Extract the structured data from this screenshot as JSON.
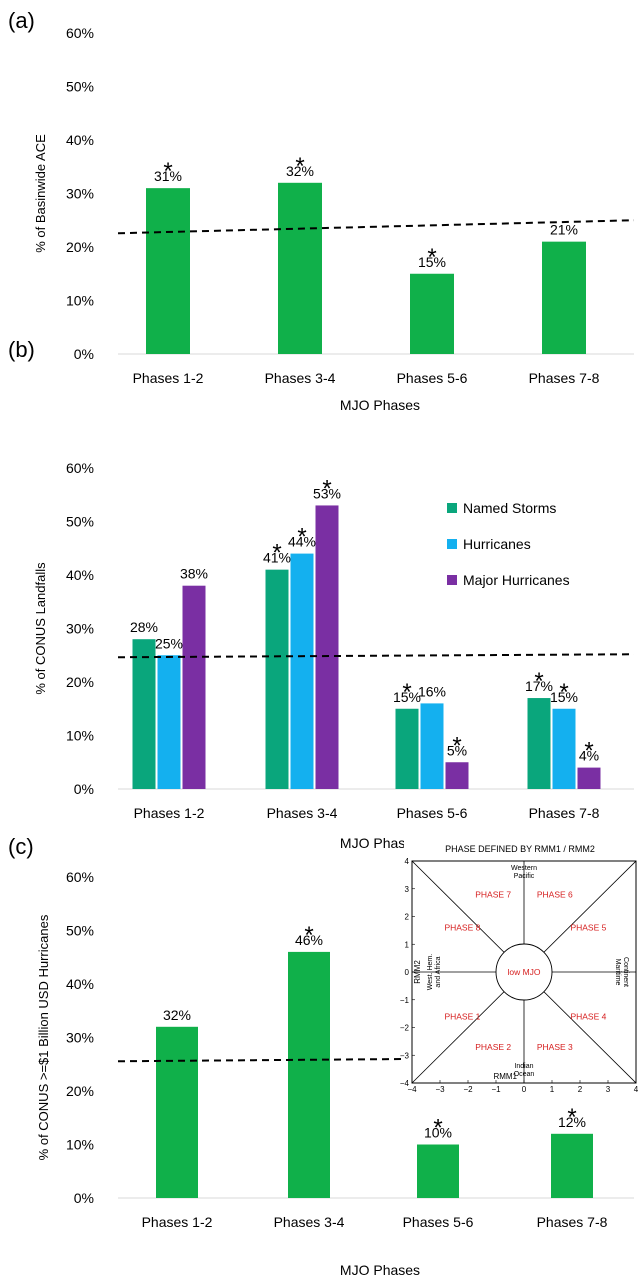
{
  "chart_data": [
    {
      "panel": "(a)",
      "type": "bar",
      "categories": [
        "Phases 1-2",
        "Phases 3-4",
        "Phases 5-6",
        "Phases 7-8"
      ],
      "series": [
        {
          "values": [
            31,
            32,
            15,
            21
          ],
          "labels": [
            "31%",
            "32%",
            "15%",
            "21%"
          ],
          "significant": [
            true,
            true,
            true,
            false
          ],
          "color": "#10b04a"
        }
      ],
      "xlabel": "MJO Phases",
      "ylabel": "% of Basinwide ACE",
      "ylim": [
        0,
        60
      ],
      "yticks": [
        0,
        10,
        20,
        30,
        40,
        50,
        60
      ],
      "yticklabels": [
        "0%",
        "10%",
        "20%",
        "30%",
        "40%",
        "50%",
        "60%"
      ],
      "reference_line": 25,
      "grid": false
    },
    {
      "panel": "(b)",
      "type": "bar",
      "categories": [
        "Phases 1-2",
        "Phases 3-4",
        "Phases 5-6",
        "Phases 7-8"
      ],
      "series": [
        {
          "name": "Named Storms",
          "values": [
            28,
            41,
            15,
            17
          ],
          "labels": [
            "28%",
            "41%",
            "15%",
            "17%"
          ],
          "significant": [
            false,
            true,
            true,
            true
          ],
          "color": "#0aa67c"
        },
        {
          "name": "Hurricanes",
          "values": [
            25,
            44,
            16,
            15
          ],
          "labels": [
            "25%",
            "44%",
            "16%",
            "15%"
          ],
          "significant": [
            false,
            true,
            false,
            true
          ],
          "color": "#14b0ef"
        },
        {
          "name": "Major Hurricanes",
          "values": [
            38,
            53,
            5,
            4
          ],
          "labels": [
            "38%",
            "53%",
            "5%",
            "4%"
          ],
          "significant": [
            false,
            true,
            true,
            true
          ],
          "color": "#7a2fa3"
        }
      ],
      "xlabel": "MJO Phases",
      "ylabel": "% of CONUS Landfalls",
      "ylim": [
        0,
        60
      ],
      "yticks": [
        0,
        10,
        20,
        30,
        40,
        50,
        60
      ],
      "yticklabels": [
        "0%",
        "10%",
        "20%",
        "30%",
        "40%",
        "50%",
        "60%"
      ],
      "reference_line": 25,
      "legend": "top-right",
      "grid": false
    },
    {
      "panel": "(c)",
      "type": "bar",
      "categories": [
        "Phases 1-2",
        "Phases 3-4",
        "Phases 5-6",
        "Phases 7-8"
      ],
      "series": [
        {
          "values": [
            32,
            46,
            10,
            12
          ],
          "labels": [
            "32%",
            "46%",
            "10%",
            "12%"
          ],
          "significant": [
            false,
            true,
            true,
            true
          ],
          "color": "#10b04a"
        }
      ],
      "xlabel": "MJO Phases",
      "ylabel": "% of CONUS >=$1 Billion USD Hurricanes",
      "ylim": [
        0,
        60
      ],
      "yticks": [
        0,
        10,
        20,
        30,
        40,
        50,
        60
      ],
      "yticklabels": [
        "0%",
        "10%",
        "20%",
        "30%",
        "40%",
        "50%",
        "60%"
      ],
      "reference_line": 25,
      "grid": false
    }
  ],
  "inset": {
    "title": "PHASE DEFINED BY RMM1 / RMM2",
    "xlabel": "RMM1",
    "ylabel": "RMM2",
    "range": [
      -4,
      4
    ],
    "x_ticklabels": [
      "−4",
      "−3",
      "−2",
      "−1",
      "0",
      "1",
      "2",
      "3",
      "4"
    ],
    "y_ticklabels": [
      "4",
      "3",
      "2",
      "1",
      "0",
      "−1",
      "−2",
      "−3",
      "−4"
    ],
    "center_label": "low MJO",
    "phases": [
      "PHASE 1",
      "PHASE 2",
      "PHASE 3",
      "PHASE 4",
      "PHASE 5",
      "PHASE 6",
      "PHASE 7",
      "PHASE 8"
    ],
    "regions": {
      "top": [
        "Western",
        "Pacific"
      ],
      "bottom": [
        "Indian",
        "Ocean"
      ],
      "left": [
        "West. Hem.",
        "and Africa"
      ],
      "right": [
        "Maritime",
        "Continent"
      ]
    }
  }
}
